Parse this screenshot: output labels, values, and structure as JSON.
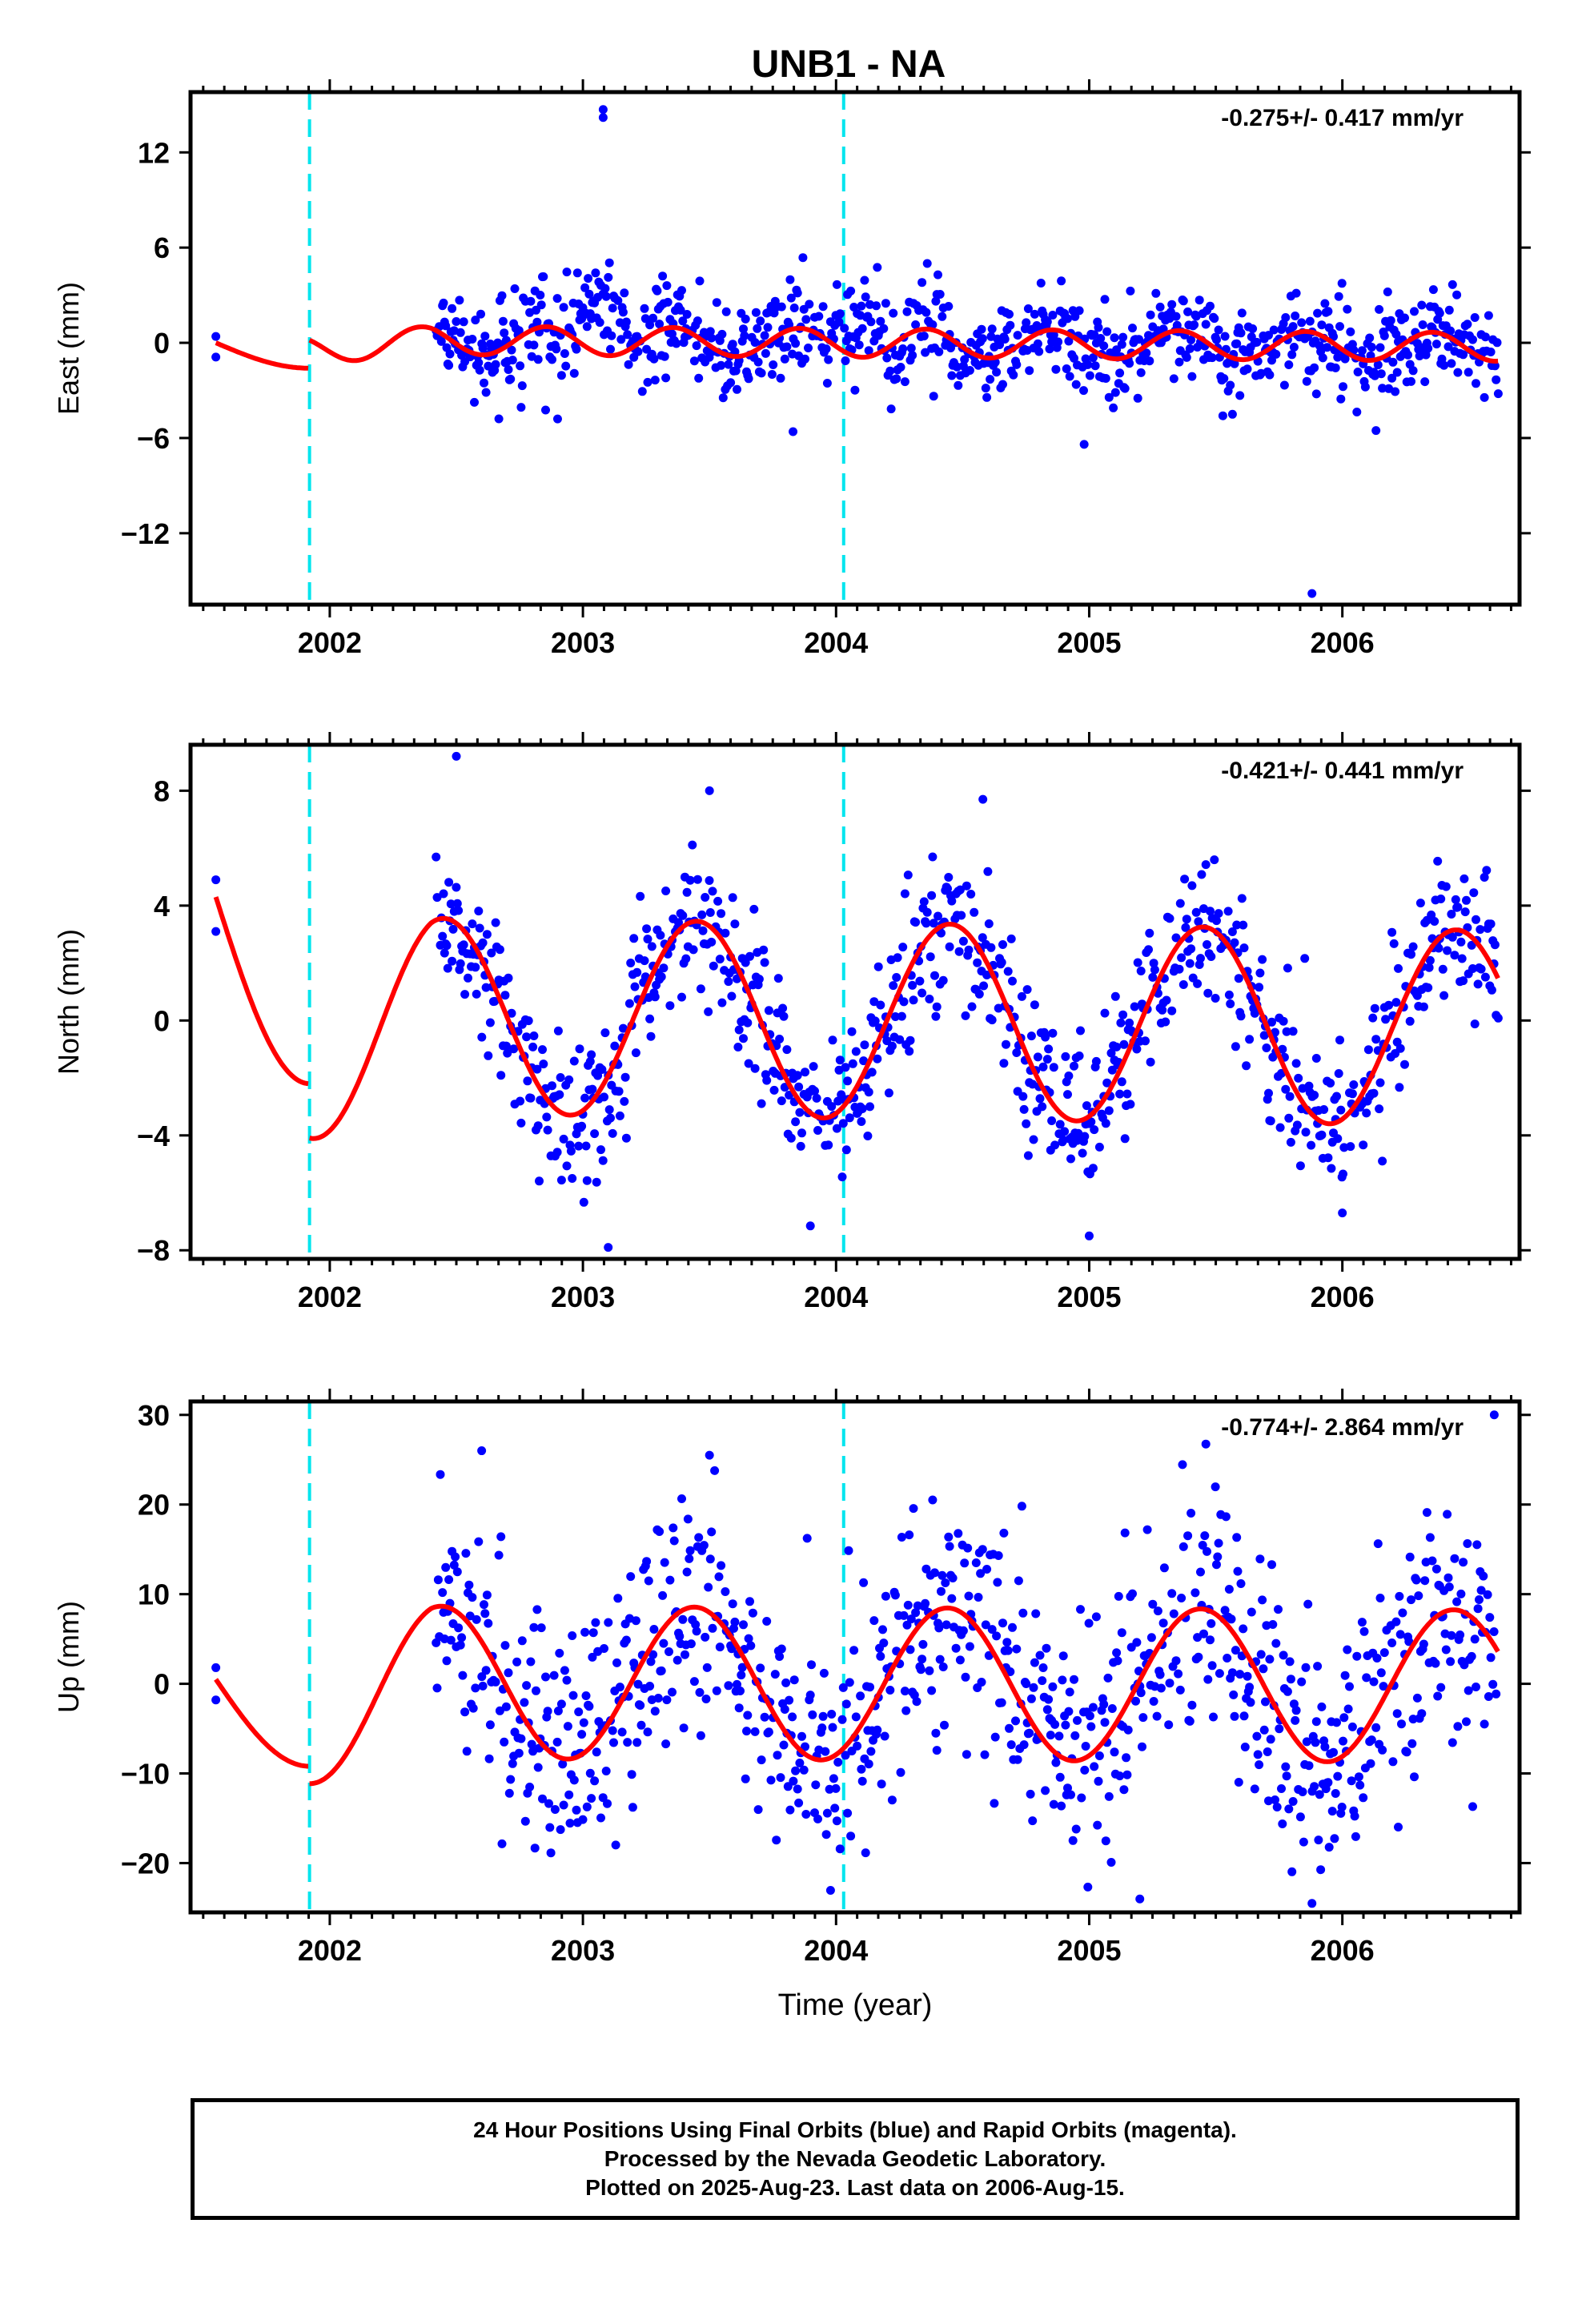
{
  "title": "UNB1 - NA",
  "colors": {
    "data_points": "#0000ff",
    "model_curve": "#ff0000",
    "equipment_change_lines": "#00e5ee",
    "axes": "#000000"
  },
  "chart_data": [
    {
      "type": "scatter",
      "panel": "east",
      "ylabel": "East (mm)",
      "xlabel": "",
      "xlim": [
        2001.45,
        2006.7
      ],
      "ylim": [
        -16.5,
        15.8
      ],
      "yticks": [
        12,
        6,
        0,
        -6,
        -12
      ],
      "ytick_labels": [
        "12",
        "6",
        "0",
        "−6",
        "−12"
      ],
      "xticks": [
        2002,
        2003,
        2004,
        2005,
        2006
      ],
      "xtick_labels": [
        "2002",
        "2003",
        "2004",
        "2005",
        "2006"
      ],
      "rate_annotation": "-0.275+/- 0.417 mm/yr",
      "vertical_markers": [
        2001.92,
        2004.03
      ],
      "model_params": {
        "base": 0.6,
        "amp": 0.9,
        "freq": 2,
        "phase": 0.2,
        "early": [
          0.0,
          -1.6
        ]
      },
      "outliers": [
        [
          2003.08,
          14.7
        ],
        [
          2003.08,
          14.2
        ],
        [
          2005.88,
          -15.8
        ],
        [
          2004.98,
          -6.4
        ],
        [
          2003.83,
          -5.6
        ],
        [
          2002.9,
          -4.8
        ]
      ],
      "sample_points": [
        {
          "x": 2001.55,
          "y": 0.4
        },
        {
          "x": 2001.55,
          "y": -0.9
        },
        {
          "x": 2002.5,
          "y": 1.2
        },
        {
          "x": 2003.1,
          "y": 6.8
        },
        {
          "x": 2004.05,
          "y": 4.6
        },
        {
          "x": 2005.5,
          "y": 3.5
        }
      ],
      "grid": false,
      "legend": "none"
    },
    {
      "type": "scatter",
      "panel": "north",
      "ylabel": "North (mm)",
      "xlabel": "",
      "xlim": [
        2001.45,
        2006.7
      ],
      "ylim": [
        -8.3,
        9.6
      ],
      "yticks": [
        8,
        4,
        0,
        -4,
        -8
      ],
      "ytick_labels": [
        "8",
        "4",
        "0",
        "−4",
        "−8"
      ],
      "xticks": [
        2002,
        2003,
        2004,
        2005,
        2006
      ],
      "xtick_labels": [
        "2002",
        "2003",
        "2004",
        "2005",
        "2006"
      ],
      "rate_annotation": "-0.421+/- 0.441 mm/yr",
      "vertical_markers": [
        2001.92,
        2004.03
      ],
      "model_params": {
        "base": 1.0,
        "amp": 3.4,
        "freq": 1,
        "phase": 0.5,
        "early": [
          4.3,
          -2.2
        ]
      },
      "outliers": [
        [
          2002.5,
          9.2
        ],
        [
          2003.5,
          8.0
        ],
        [
          2003.1,
          -7.9
        ],
        [
          2005.0,
          -7.5
        ],
        [
          2006.0,
          -6.7
        ],
        [
          2004.58,
          7.7
        ]
      ],
      "sample_points": [
        {
          "x": 2001.55,
          "y": 4.9
        },
        {
          "x": 2001.55,
          "y": 3.1
        },
        {
          "x": 2002.5,
          "y": 5.0
        },
        {
          "x": 2003.5,
          "y": 4.6
        },
        {
          "x": 2004.5,
          "y": 4.3
        },
        {
          "x": 2005.5,
          "y": 3.8
        }
      ],
      "grid": false,
      "legend": "none"
    },
    {
      "type": "scatter",
      "panel": "up",
      "ylabel": "Up (mm)",
      "xlabel": "Time (year)",
      "xlim": [
        2001.45,
        2006.7
      ],
      "ylim": [
        -25.5,
        31.5
      ],
      "yticks": [
        30,
        20,
        10,
        0,
        -10,
        -20
      ],
      "ytick_labels": [
        "30",
        "20",
        "10",
        "0",
        "−10",
        "−20"
      ],
      "xticks": [
        2002,
        2003,
        2004,
        2005,
        2006
      ],
      "xtick_labels": [
        "2002",
        "2003",
        "2004",
        "2005",
        "2006"
      ],
      "rate_annotation": "-0.774+/- 2.864 mm/yr",
      "vertical_markers": [
        2001.92,
        2004.03
      ],
      "model_params": {
        "base": 0.5,
        "amp": 8.5,
        "freq": 1,
        "phase": 0.6,
        "early": [
          0.5,
          -9.2
        ]
      },
      "outliers": [
        [
          2006.6,
          30.0
        ],
        [
          2005.88,
          -24.5
        ],
        [
          2005.2,
          -24.0
        ],
        [
          2002.6,
          26.0
        ],
        [
          2003.5,
          25.5
        ]
      ],
      "sample_points": [
        {
          "x": 2001.55,
          "y": 1.8
        },
        {
          "x": 2001.55,
          "y": -1.8
        },
        {
          "x": 2002.58,
          "y": 10.4
        },
        {
          "x": 2003.5,
          "y": 9.6
        },
        {
          "x": 2004.55,
          "y": 7.0
        },
        {
          "x": 2005.55,
          "y": 6.4
        }
      ],
      "grid": false,
      "legend": "none"
    }
  ],
  "caption": {
    "line1": "24 Hour Positions Using Final Orbits (blue) and Rapid Orbits (magenta).",
    "line2": "Processed by the Nevada Geodetic Laboratory.",
    "line3": "Plotted on 2025-Aug-23. Last data on 2006-Aug-15."
  }
}
